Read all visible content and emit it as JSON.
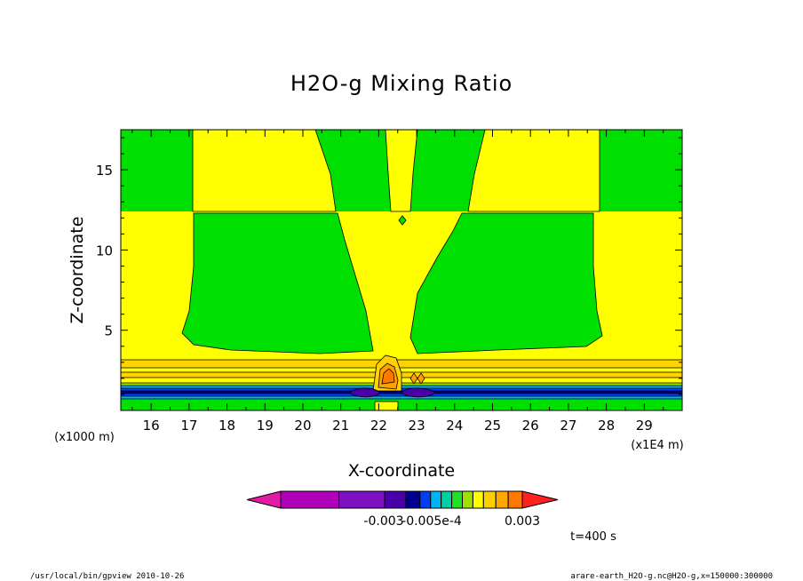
{
  "chart_data": {
    "type": "heatmap",
    "title": "H2O-g Mixing Ratio",
    "xlabel": "X-coordinate",
    "ylabel": "Z-coordinate",
    "xlim": [
      15.2,
      30.0
    ],
    "ylim": [
      0.0,
      17.5
    ],
    "x_ticks": [
      16,
      17,
      18,
      19,
      20,
      21,
      22,
      23,
      24,
      25,
      26,
      27,
      28,
      29
    ],
    "y_ticks": [
      5,
      10,
      15
    ],
    "x_tick_labels": [
      "16",
      "17",
      "18",
      "19",
      "20",
      "21",
      "22",
      "23",
      "24",
      "25",
      "26",
      "27",
      "28",
      "29"
    ],
    "y_tick_labels": [
      "5",
      "10",
      "15"
    ],
    "x_unit_label": "(x1E4 m)",
    "y_unit_label": "(x1000 m)",
    "time_label": "t=400 s",
    "colorbar": {
      "colors": [
        "#e21aa8",
        "#b000b8",
        "#7a10c0",
        "#4a00a8",
        "#000090",
        "#0040f0",
        "#00b4f0",
        "#00d0a0",
        "#22e022",
        "#a0e000",
        "#ffff00",
        "#ffd000",
        "#ffa800",
        "#ff7800",
        "#ff2020"
      ],
      "tick_labels": [
        "-0.003",
        "-0.005e-4",
        "0.003"
      ]
    },
    "field_colors": {
      "green": "#00e000",
      "yellow": "#ffff00",
      "gold": "#ffd200",
      "orange": "#ffa000",
      "dark_orange": "#ff7800",
      "light_blue": "#00b4f0",
      "blue": "#0040f0",
      "navy": "#000090",
      "violet": "#4a00a8"
    }
  },
  "footer": {
    "left": "/usr/local/bin/gpview  2010-10-26",
    "right": "arare-earth_H2O-g.nc@H2O-g,x=150000:300000"
  }
}
